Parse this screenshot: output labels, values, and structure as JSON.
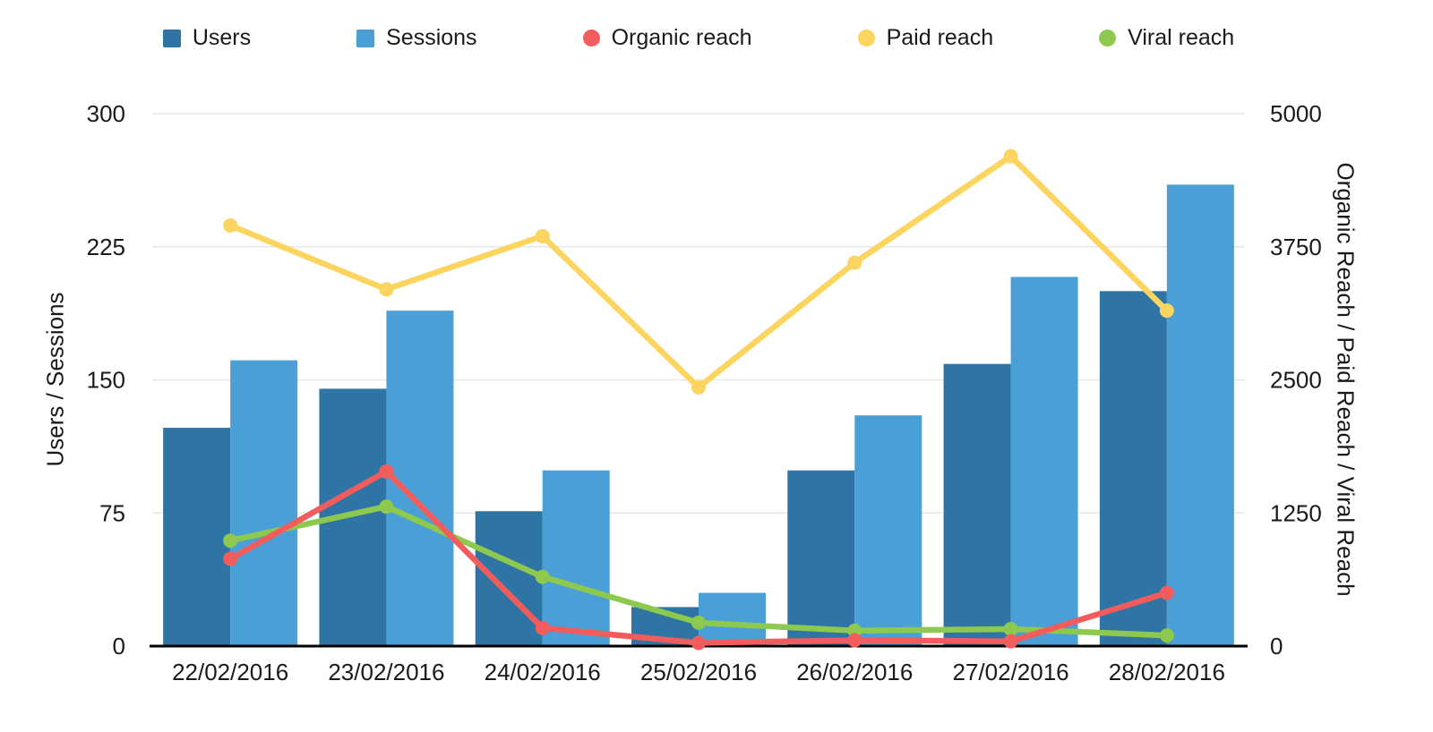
{
  "chart_data": {
    "type": "bar",
    "subtype": "combo-bar-line-dual-axis",
    "categories": [
      "22/02/2016",
      "23/02/2016",
      "24/02/2016",
      "25/02/2016",
      "26/02/2016",
      "27/02/2016",
      "28/02/2016"
    ],
    "bar_series": [
      {
        "name": "Users",
        "color": "#2e74a4",
        "values": [
          123,
          145,
          76,
          22,
          99,
          159,
          200
        ]
      },
      {
        "name": "Sessions",
        "color": "#4aa0d6",
        "values": [
          161,
          189,
          99,
          30,
          130,
          208,
          260
        ]
      }
    ],
    "line_series": [
      {
        "name": "Organic reach",
        "color": "#f25c5c",
        "values": [
          820,
          1640,
          170,
          30,
          55,
          45,
          500
        ]
      },
      {
        "name": "Paid reach",
        "color": "#fbd55f",
        "values": [
          3950,
          3350,
          3850,
          2430,
          3600,
          4600,
          3150
        ]
      },
      {
        "name": "Viral reach",
        "color": "#8dc94e",
        "values": [
          990,
          1310,
          650,
          220,
          145,
          160,
          100
        ]
      }
    ],
    "left_axis": {
      "label": "Users / Sessions",
      "ticks": [
        0,
        75,
        150,
        225,
        300
      ],
      "min": 0,
      "max": 300
    },
    "right_axis": {
      "label": "Organic Reach / Paid Reach / Viral Reach",
      "ticks": [
        0,
        1250,
        2500,
        3750,
        5000
      ],
      "min": 0,
      "max": 5000
    },
    "grid": "horizontal",
    "legend_position": "top",
    "colors": {
      "gridline": "#e7e7e7",
      "axis_line": "#000000",
      "text": "#1a1a1a",
      "background": "#ffffff"
    }
  }
}
